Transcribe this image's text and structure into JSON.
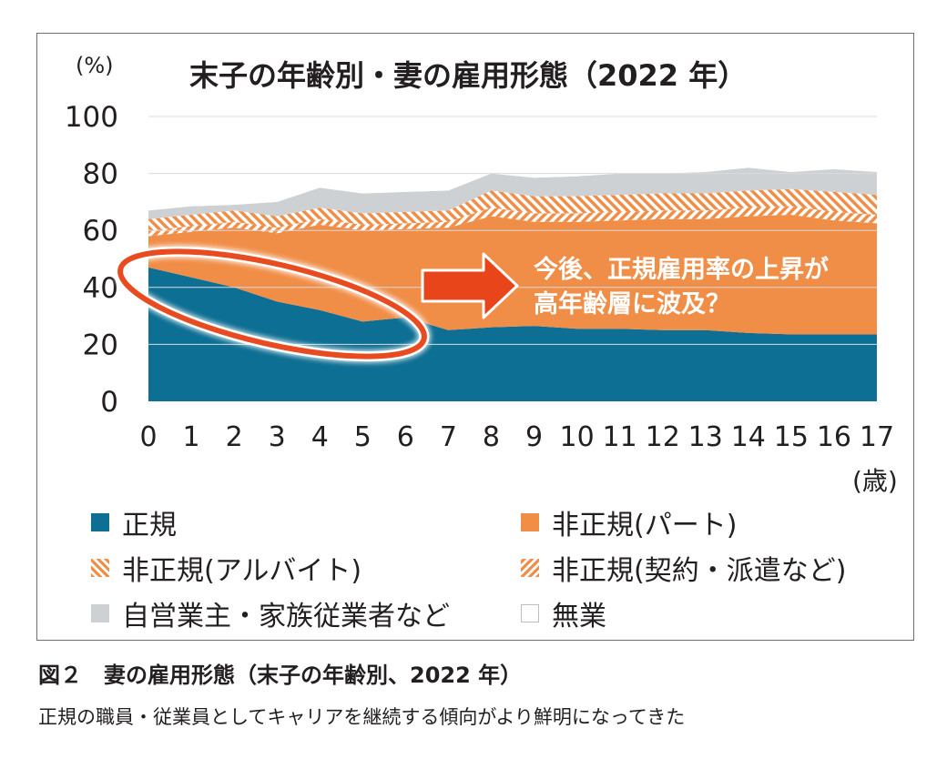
{
  "chart_data": {
    "type": "area",
    "title": "末子の年齢別・妻の雇用形態（2022 年）",
    "y_unit": "(%)",
    "x_unit": "(歳)",
    "ylim": [
      0,
      100
    ],
    "yticks": [
      "0",
      "20",
      "40",
      "60",
      "80",
      "100"
    ],
    "categories": [
      "0",
      "1",
      "2",
      "3",
      "4",
      "5",
      "6",
      "7",
      "8",
      "9",
      "10",
      "11",
      "12",
      "13",
      "14",
      "15",
      "16",
      "17"
    ],
    "stacked": true,
    "series": [
      {
        "name": "正規",
        "color": "#0d6f93",
        "pattern": "solid",
        "values": [
          47,
          43.5,
          40,
          35,
          32,
          28,
          29.5,
          25,
          26,
          26.5,
          25.5,
          25.5,
          25,
          25,
          24,
          23.5,
          23.5,
          23.5
        ]
      },
      {
        "name": "非正規(パート)",
        "color": "#f08d47",
        "pattern": "solid",
        "values": [
          11,
          16,
          21,
          24,
          30,
          32,
          31,
          36,
          39,
          36.5,
          37.5,
          38,
          39,
          39,
          41,
          42,
          40,
          39
        ]
      },
      {
        "name": "非正規(アルバイト)",
        "color": "#f4a36b",
        "pattern": "hatch-right",
        "values": [
          2,
          2,
          2,
          2,
          2,
          2,
          2,
          2,
          3,
          3,
          3,
          3,
          3,
          3,
          3,
          3,
          3,
          3
        ]
      },
      {
        "name": "非正規(契約・派遣など)",
        "color": "#f4a36b",
        "pattern": "hatch-left",
        "values": [
          4,
          4,
          4,
          4,
          4,
          4,
          4,
          4,
          6,
          6,
          6,
          6,
          6,
          6,
          6,
          6,
          7,
          7
        ]
      },
      {
        "name": "自営業主・家族従業者など",
        "color": "#ced1d3",
        "pattern": "solid",
        "values": [
          3,
          3,
          2,
          5,
          7,
          7,
          7,
          7,
          6,
          6.5,
          7,
          7.5,
          7,
          7.5,
          8,
          6,
          8,
          8
        ]
      },
      {
        "name": "無業",
        "color": "#ffffff",
        "pattern": "solid",
        "values": [
          33,
          31.5,
          31,
          30,
          25,
          27,
          26.5,
          26,
          20,
          21.5,
          21,
          20,
          20,
          19.5,
          18,
          19.5,
          18.5,
          19.5
        ]
      }
    ],
    "annotation": {
      "text_line1": "今後、正規雇用率の上昇が",
      "text_line2": "高年齢層に波及？"
    },
    "legend_position": "bottom"
  },
  "caption": {
    "title": "図２　妻の雇用形態（末子の年齢別、2022 年）",
    "subtitle": "正規の職員・従業員としてキャリアを継続する傾向がより鮮明になってきた"
  }
}
